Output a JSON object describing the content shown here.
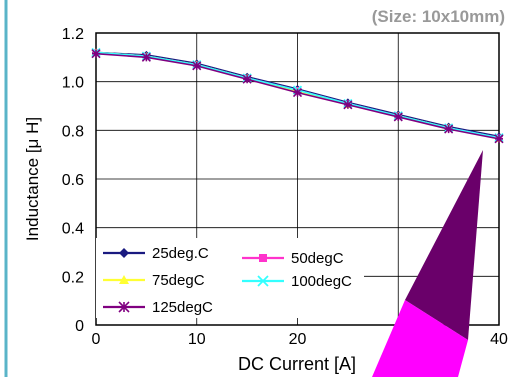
{
  "chart_data": {
    "type": "line",
    "title": "",
    "annotation": "(Size: 10x10mm)",
    "xlabel": "DC Current [A]",
    "ylabel": "Inductance [μ H]",
    "xlim": [
      0,
      40
    ],
    "ylim": [
      0,
      1.2
    ],
    "xticks": [
      "0",
      "10",
      "20",
      "30",
      "40"
    ],
    "yticks": [
      "0",
      "0.2",
      "0.4",
      "0.6",
      "0.8",
      "1.0",
      "1.2"
    ],
    "grid": true,
    "legend_position": "bottom-left",
    "x": [
      0,
      5,
      10,
      15,
      20,
      25,
      30,
      35,
      40
    ],
    "series": [
      {
        "name": "25deg.C",
        "color": "#1a1a80",
        "marker": "diamond",
        "values": [
          1.12,
          1.11,
          1.075,
          1.02,
          0.97,
          0.915,
          0.865,
          0.815,
          0.775
        ]
      },
      {
        "name": "50degC",
        "color": "#ff33cc",
        "marker": "square",
        "values": [
          1.12,
          1.105,
          1.07,
          1.015,
          0.965,
          0.91,
          0.86,
          0.81,
          0.77
        ]
      },
      {
        "name": "75degC",
        "color": "#ffff33",
        "marker": "triangle",
        "values": [
          1.12,
          1.105,
          1.07,
          1.015,
          0.96,
          0.905,
          0.86,
          0.81,
          0.765
        ]
      },
      {
        "name": "100degC",
        "color": "#33ffff",
        "marker": "x",
        "values": [
          1.12,
          1.105,
          1.07,
          1.015,
          0.965,
          0.91,
          0.86,
          0.81,
          0.77
        ]
      },
      {
        "name": "125degC",
        "color": "#800080",
        "marker": "star",
        "values": [
          1.115,
          1.1,
          1.065,
          1.01,
          0.955,
          0.905,
          0.855,
          0.805,
          0.765
        ]
      }
    ],
    "colors": {
      "plot_border": "#000000",
      "grid": "#000000",
      "frame_left": "#5ab4c8",
      "callout_dark": "#6a006a",
      "callout_light": "#ff00ff"
    }
  }
}
